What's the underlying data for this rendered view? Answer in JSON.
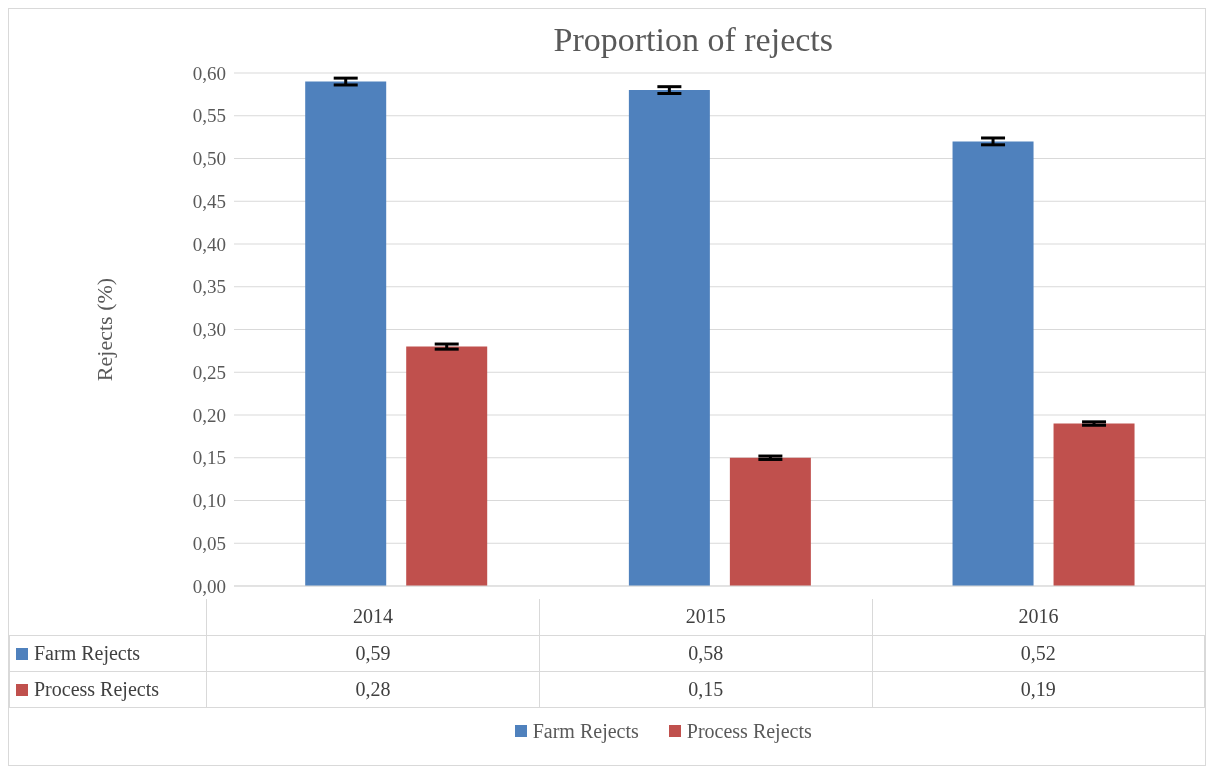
{
  "chart_data": {
    "type": "bar",
    "title": "Proportion of rejects",
    "ylabel": "Rejects (%)",
    "categories": [
      "2014",
      "2015",
      "2016"
    ],
    "series": [
      {
        "name": "Farm Rejects",
        "color": "#4f81bd",
        "values": [
          0.59,
          0.58,
          0.52
        ],
        "errors": [
          0.004,
          0.004,
          0.004
        ],
        "value_labels": [
          "0,59",
          "0,58",
          "0,52"
        ]
      },
      {
        "name": "Process Rejects",
        "color": "#c0504d",
        "values": [
          0.28,
          0.15,
          0.19
        ],
        "errors": [
          0.003,
          0.002,
          0.002
        ],
        "value_labels": [
          "0,28",
          "0,15",
          "0,19"
        ]
      }
    ],
    "ylim": [
      0,
      0.6
    ],
    "yticks": [
      {
        "value": 0,
        "label": "0,00"
      },
      {
        "value": 0.05,
        "label": "0,05"
      },
      {
        "value": 0.1,
        "label": "0,10"
      },
      {
        "value": 0.15,
        "label": "0,15"
      },
      {
        "value": 0.2,
        "label": "0,20"
      },
      {
        "value": 0.25,
        "label": "0,25"
      },
      {
        "value": 0.3,
        "label": "0,30"
      },
      {
        "value": 0.35,
        "label": "0,35"
      },
      {
        "value": 0.4,
        "label": "0,40"
      },
      {
        "value": 0.45,
        "label": "0,45"
      },
      {
        "value": 0.5,
        "label": "0,50"
      },
      {
        "value": 0.55,
        "label": "0,55"
      },
      {
        "value": 0.6,
        "label": "0,60"
      }
    ],
    "grid": "y",
    "legend": "bottom"
  }
}
